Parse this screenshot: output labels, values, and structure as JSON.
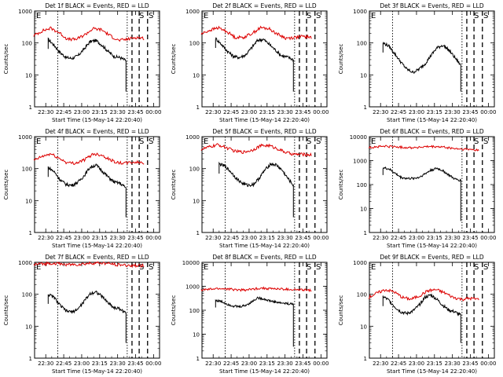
{
  "chart_data": [
    {
      "type": "line",
      "title": "Det 1f BLACK = Events, RED = LLD",
      "xlabel": "Start Time (15-May-14 22:20:40)",
      "ylabel": "Counts/sec",
      "yscale": "log",
      "ylim": [
        1,
        1000
      ],
      "y_ticks": [
        "1",
        "10",
        "100",
        "1000"
      ],
      "x_ticks": [
        "22:30",
        "22:45",
        "23:00",
        "23:15",
        "23:30",
        "23:45",
        "00:00"
      ],
      "markers": [
        "E",
        "S",
        "S"
      ],
      "series": [
        {
          "name": "Events",
          "color": "#000000",
          "start": "22:32",
          "end": "23:37",
          "values": [
            130,
            85,
            50,
            35,
            33,
            40,
            65,
            110,
            120,
            85,
            55,
            38,
            35,
            28
          ]
        },
        {
          "name": "LLD",
          "color": "#dd0000",
          "start": "22:20",
          "end": "23:52",
          "values": [
            170,
            240,
            290,
            210,
            130,
            130,
            180,
            280,
            260,
            170,
            120,
            130,
            150,
            140
          ]
        }
      ]
    },
    {
      "type": "line",
      "title": "Det 2f BLACK = Events, RED = LLD",
      "xlabel": "Start Time (15-May-14 22:20:40)",
      "ylabel": "Counts/sec",
      "yscale": "log",
      "ylim": [
        1,
        1000
      ],
      "y_ticks": [
        "1",
        "10",
        "100",
        "1000"
      ],
      "x_ticks": [
        "22:30",
        "22:45",
        "23:00",
        "23:15",
        "23:30",
        "23:45",
        "00:00"
      ],
      "markers": [
        "E",
        "S",
        "S"
      ],
      "series": [
        {
          "name": "Events",
          "color": "#000000",
          "start": "22:32",
          "end": "23:37",
          "values": [
            140,
            90,
            55,
            38,
            35,
            42,
            70,
            120,
            130,
            90,
            60,
            40,
            36,
            30
          ]
        },
        {
          "name": "LLD",
          "color": "#dd0000",
          "start": "22:20",
          "end": "23:52",
          "values": [
            190,
            250,
            300,
            230,
            150,
            150,
            200,
            300,
            280,
            190,
            140,
            150,
            160,
            150
          ]
        }
      ]
    },
    {
      "type": "line",
      "title": "Det 3f BLACK = Events, RED = LLD",
      "xlabel": "Start Time (15-May-14 22:20:40)",
      "ylabel": "Counts/sec",
      "yscale": "log",
      "ylim": [
        1,
        1000
      ],
      "y_ticks": [
        "1",
        "10",
        "100",
        "1000"
      ],
      "x_ticks": [
        "22:30",
        "22:45",
        "23:00",
        "23:15",
        "23:30",
        "23:45",
        "00:00"
      ],
      "markers": [
        "E",
        "S",
        "S"
      ],
      "series": [
        {
          "name": "Events",
          "color": "#000000",
          "start": "22:32",
          "end": "23:37",
          "values": [
            100,
            80,
            45,
            25,
            15,
            12,
            15,
            22,
            40,
            70,
            85,
            60,
            35,
            20
          ]
        }
      ]
    },
    {
      "type": "line",
      "title": "Det 4f BLACK = Events, RED = LLD",
      "xlabel": "Start Time (15-May-14 22:20:40)",
      "ylabel": "Counts/sec",
      "yscale": "log",
      "ylim": [
        1,
        1000
      ],
      "y_ticks": [
        "1",
        "10",
        "100",
        "1000"
      ],
      "x_ticks": [
        "22:30",
        "22:45",
        "23:00",
        "23:15",
        "23:30",
        "23:45",
        "00:00"
      ],
      "markers": [
        "E",
        "S",
        "S"
      ],
      "series": [
        {
          "name": "Events",
          "color": "#000000",
          "start": "22:32",
          "end": "23:37",
          "values": [
            110,
            80,
            45,
            32,
            30,
            38,
            60,
            110,
            130,
            85,
            55,
            38,
            35,
            25
          ]
        },
        {
          "name": "LLD",
          "color": "#dd0000",
          "start": "22:20",
          "end": "23:52",
          "values": [
            180,
            240,
            290,
            210,
            150,
            150,
            190,
            290,
            270,
            190,
            150,
            150,
            160,
            150
          ]
        }
      ]
    },
    {
      "type": "line",
      "title": "Det 5f BLACK = Events, RED = LLD",
      "xlabel": "Start Time (15-May-14 22:20:40)",
      "ylabel": "Counts/sec",
      "yscale": "log",
      "ylim": [
        1,
        1000
      ],
      "y_ticks": [
        "1",
        "10",
        "100",
        "1000"
      ],
      "x_ticks": [
        "22:30",
        "22:45",
        "23:00",
        "23:15",
        "23:30",
        "23:45",
        "00:00"
      ],
      "markers": [
        "E",
        "S",
        "S"
      ],
      "series": [
        {
          "name": "Events",
          "color": "#000000",
          "start": "22:35",
          "end": "23:37",
          "values": [
            140,
            120,
            80,
            50,
            35,
            30,
            32,
            50,
            90,
            140,
            130,
            90,
            50,
            30
          ]
        },
        {
          "name": "LLD",
          "color": "#dd0000",
          "start": "22:20",
          "end": "23:52",
          "values": [
            400,
            480,
            560,
            450,
            350,
            330,
            380,
            520,
            530,
            420,
            320,
            280,
            280,
            270
          ]
        }
      ]
    },
    {
      "type": "line",
      "title": "Det 6f BLACK = Events, RED = LLD",
      "xlabel": "Start Time (15-May-14 22:20:40)",
      "ylabel": "Counts/sec",
      "yscale": "log",
      "ylim": [
        1,
        10000
      ],
      "y_ticks": [
        "1",
        "10",
        "100",
        "1000",
        "10000"
      ],
      "x_ticks": [
        "22:30",
        "22:45",
        "23:00",
        "23:15",
        "23:30",
        "23:45",
        "00:00"
      ],
      "markers": [
        "E",
        "S",
        "S"
      ],
      "series": [
        {
          "name": "Events",
          "color": "#000000",
          "start": "22:32",
          "end": "23:37",
          "values": [
            500,
            450,
            300,
            200,
            180,
            180,
            200,
            280,
            400,
            480,
            380,
            250,
            170,
            150
          ]
        },
        {
          "name": "LLD",
          "color": "#dd0000",
          "start": "22:20",
          "end": "23:52",
          "values": [
            3500,
            3800,
            4000,
            3800,
            3600,
            3500,
            3600,
            3800,
            3800,
            3600,
            3200,
            3000,
            2900,
            2800
          ]
        }
      ]
    },
    {
      "type": "line",
      "title": "Det 7f BLACK = Events, RED = LLD",
      "xlabel": "Start Time (15-May-14 22:20:40)",
      "ylabel": "Counts/sec",
      "yscale": "log",
      "ylim": [
        1,
        1000
      ],
      "y_ticks": [
        "1",
        "10",
        "100",
        "1000"
      ],
      "x_ticks": [
        "22:30",
        "22:45",
        "23:00",
        "23:15",
        "23:30",
        "23:45",
        "00:00"
      ],
      "markers": [
        "E",
        "S",
        "S"
      ],
      "series": [
        {
          "name": "Events",
          "color": "#000000",
          "start": "22:32",
          "end": "23:37",
          "values": [
            100,
            80,
            45,
            30,
            28,
            35,
            60,
            105,
            120,
            85,
            55,
            38,
            35,
            25
          ]
        },
        {
          "name": "LLD",
          "color": "#dd0000",
          "start": "22:20",
          "end": "23:52",
          "values": [
            850,
            900,
            950,
            900,
            850,
            850,
            900,
            950,
            950,
            900,
            850,
            800,
            800,
            780
          ]
        }
      ]
    },
    {
      "type": "line",
      "title": "Det 8f BLACK = Events, RED = LLD",
      "xlabel": "Start Time (15-May-14 22:20:40)",
      "ylabel": "Counts/sec",
      "yscale": "log",
      "ylim": [
        1,
        10000
      ],
      "y_ticks": [
        "1",
        "10",
        "100",
        "1000",
        "10000"
      ],
      "x_ticks": [
        "22:30",
        "22:45",
        "23:00",
        "23:15",
        "23:30",
        "23:45",
        "00:00"
      ],
      "markers": [
        "E",
        "S",
        "S"
      ],
      "series": [
        {
          "name": "Events",
          "color": "#000000",
          "start": "22:32",
          "end": "23:37",
          "values": [
            260,
            230,
            180,
            150,
            140,
            160,
            220,
            330,
            300,
            250,
            220,
            200,
            190,
            180
          ]
        },
        {
          "name": "LLD",
          "color": "#dd0000",
          "start": "22:20",
          "end": "23:52",
          "values": [
            700,
            750,
            800,
            780,
            720,
            700,
            750,
            850,
            800,
            780,
            750,
            720,
            700,
            700
          ]
        }
      ]
    },
    {
      "type": "line",
      "title": "Det 9f BLACK = Events, RED = LLD",
      "xlabel": "Start Time (15-May-14 22:20:40)",
      "ylabel": "Counts/sec",
      "yscale": "log",
      "ylim": [
        1,
        1000
      ],
      "y_ticks": [
        "1",
        "10",
        "100",
        "1000"
      ],
      "x_ticks": [
        "22:30",
        "22:45",
        "23:00",
        "23:15",
        "23:30",
        "23:45",
        "00:00"
      ],
      "markers": [
        "E",
        "S",
        "S"
      ],
      "series": [
        {
          "name": "Events",
          "color": "#000000",
          "start": "22:32",
          "end": "23:37",
          "values": [
            85,
            65,
            40,
            28,
            25,
            30,
            45,
            80,
            95,
            70,
            45,
            32,
            28,
            22
          ]
        },
        {
          "name": "LLD",
          "color": "#dd0000",
          "start": "22:20",
          "end": "23:52",
          "values": [
            80,
            110,
            140,
            120,
            80,
            70,
            90,
            130,
            140,
            110,
            80,
            70,
            75,
            70
          ]
        }
      ]
    }
  ]
}
